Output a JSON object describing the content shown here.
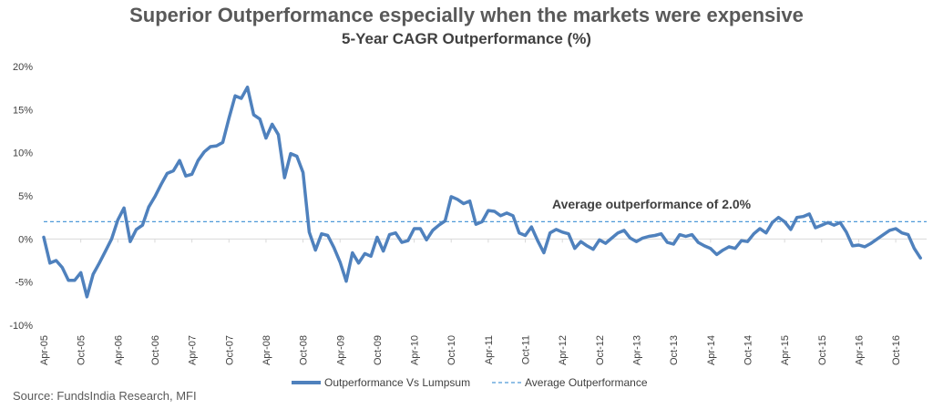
{
  "title": "Superior Outperformance especially when the markets were expensive",
  "subtitle": "5-Year CAGR Outperformance (%)",
  "source": "Source: FundsIndia Research, MFI",
  "colors": {
    "series": "#4f81bd",
    "average": "#4f9ad8",
    "axis": "#d9d9d9",
    "text": "#404040"
  },
  "chart_data": {
    "type": "line",
    "title": "Superior Outperformance especially when the markets were expensive",
    "subtitle": "5-Year CAGR Outperformance (%)",
    "xlabel": "",
    "ylabel": "",
    "ylim": [
      -10,
      20
    ],
    "y_ticks": [
      "20%",
      "15%",
      "10%",
      "5%",
      "0%",
      "-5%",
      "-10%"
    ],
    "x_tick_labels": [
      "Apr-05",
      "Oct-05",
      "Apr-06",
      "Oct-06",
      "Apr-07",
      "Oct-07",
      "Apr-08",
      "Oct-08",
      "Apr-09",
      "Oct-09",
      "Apr-10",
      "Oct-10",
      "Apr-11",
      "Oct-11",
      "Apr-12",
      "Oct-12",
      "Apr-13",
      "Oct-13",
      "Apr-14",
      "Oct-14",
      "Apr-15",
      "Oct-15",
      "Apr-16",
      "Oct-16"
    ],
    "grid": false,
    "legend_position": "bottom",
    "annotation": "Average outperformance of 2.0%",
    "series": [
      {
        "name": "Outperformance Vs Lumpsum",
        "style": "solid",
        "x_start": "Apr-05",
        "frequency": "monthly",
        "values": [
          0.2,
          -2.8,
          -2.5,
          -3.3,
          -4.8,
          -4.8,
          -3.9,
          -6.7,
          -4.1,
          -2.8,
          -1.4,
          0.0,
          2.2,
          3.6,
          -0.3,
          1.1,
          1.6,
          3.7,
          4.9,
          6.3,
          7.6,
          7.9,
          9.1,
          7.3,
          7.5,
          9.1,
          10.1,
          10.7,
          10.8,
          11.2,
          14.0,
          16.6,
          16.3,
          17.6,
          14.4,
          13.9,
          11.7,
          13.3,
          12.1,
          7.1,
          9.9,
          9.6,
          7.7,
          0.8,
          -1.3,
          0.6,
          0.4,
          -1.0,
          -2.7,
          -4.9,
          -1.6,
          -2.8,
          -1.7,
          -2.0,
          0.2,
          -1.4,
          0.5,
          0.7,
          -0.4,
          -0.2,
          1.2,
          1.2,
          -0.1,
          1.0,
          1.6,
          2.1,
          4.9,
          4.6,
          4.1,
          4.4,
          1.7,
          2.0,
          3.3,
          3.2,
          2.7,
          3.0,
          2.7,
          0.7,
          0.4,
          1.4,
          -0.2,
          -1.6,
          0.7,
          1.1,
          0.8,
          0.6,
          -1.1,
          -0.3,
          -0.8,
          -1.2,
          -0.1,
          -0.5,
          0.1,
          0.7,
          1.0,
          0.1,
          -0.3,
          0.1,
          0.3,
          0.4,
          0.6,
          -0.4,
          -0.6,
          0.5,
          0.3,
          0.5,
          -0.4,
          -0.8,
          -1.1,
          -1.8,
          -1.3,
          -0.9,
          -1.1,
          -0.2,
          -0.3,
          0.6,
          1.2,
          0.7,
          1.9,
          2.5,
          2.0,
          1.1,
          2.5,
          2.6,
          2.9,
          1.3,
          1.6,
          1.9,
          1.6,
          1.9,
          0.8,
          -0.8,
          -0.7,
          -0.9,
          -0.5,
          0.0,
          0.5,
          1.0,
          1.2,
          0.7,
          0.5,
          -1.1,
          -2.2
        ]
      },
      {
        "name": "Average Outperformance",
        "style": "dashed",
        "value": 2.0
      }
    ]
  }
}
